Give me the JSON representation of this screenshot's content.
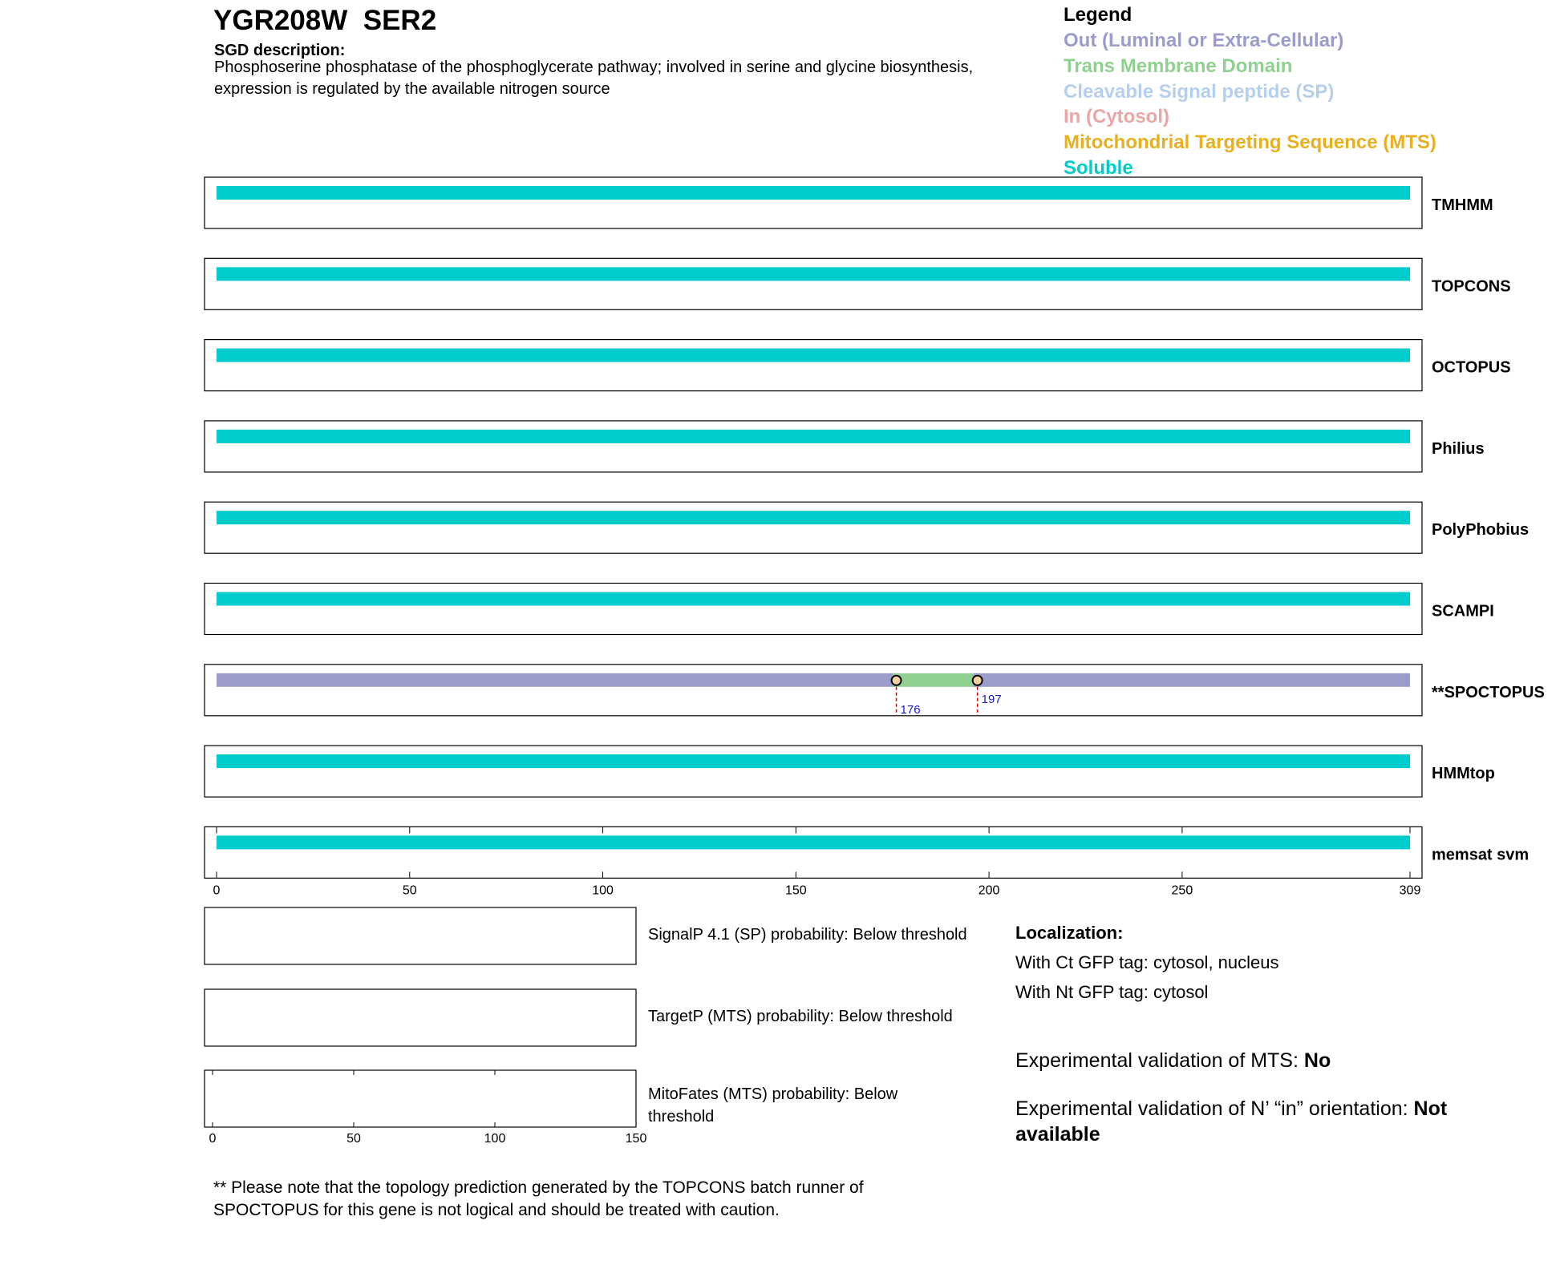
{
  "header": {
    "title": "YGR208W  SER2",
    "description_label": "SGD description:",
    "description": "Phosphoserine phosphatase of the phosphoglycerate pathway; involved in serine and glycine biosynthesis, expression is regulated by the available nitrogen source"
  },
  "legend": {
    "title": "Legend",
    "items": [
      {
        "label": "Out (Luminal or Extra-Cellular)",
        "color": "#9c9ccc"
      },
      {
        "label": "Trans Membrane Domain",
        "color": "#90d090"
      },
      {
        "label": "Cleavable Signal peptide (SP)",
        "color": "#b5d0ee"
      },
      {
        "label": "In (Cytosol)",
        "color": "#eba5a5"
      },
      {
        "label": "Mitochondrial Targeting Sequence (MTS)",
        "color": "#e8b020"
      },
      {
        "label": "Soluble",
        "color": "#00cccc"
      }
    ]
  },
  "topology": {
    "xlim": [
      0,
      309
    ],
    "xticks": [
      0,
      50,
      100,
      150,
      200,
      250,
      309
    ],
    "tracks": [
      {
        "name": "TMHMM",
        "segments": [
          {
            "start": 1,
            "end": 309,
            "legend": 5
          }
        ]
      },
      {
        "name": "TOPCONS",
        "segments": [
          {
            "start": 1,
            "end": 309,
            "legend": 5
          }
        ]
      },
      {
        "name": "OCTOPUS",
        "segments": [
          {
            "start": 1,
            "end": 309,
            "legend": 5
          }
        ]
      },
      {
        "name": "Philius",
        "segments": [
          {
            "start": 1,
            "end": 309,
            "legend": 5
          }
        ]
      },
      {
        "name": "PolyPhobius",
        "segments": [
          {
            "start": 1,
            "end": 309,
            "legend": 5
          }
        ]
      },
      {
        "name": "SCAMPI",
        "segments": [
          {
            "start": 1,
            "end": 309,
            "legend": 5
          }
        ]
      },
      {
        "name": "**SPOCTOPUS",
        "segments": [
          {
            "start": 1,
            "end": 176,
            "legend": 0
          },
          {
            "start": 176,
            "end": 197,
            "legend": 1
          },
          {
            "start": 197,
            "end": 309,
            "legend": 0
          }
        ],
        "markers": [
          176,
          197
        ]
      },
      {
        "name": "HMMtop",
        "segments": [
          {
            "start": 1,
            "end": 309,
            "legend": 5
          }
        ]
      },
      {
        "name": "memsat svm",
        "segments": [
          {
            "start": 1,
            "end": 309,
            "legend": 5
          }
        ]
      }
    ]
  },
  "probabilities": {
    "xlim": [
      0,
      150
    ],
    "xticks": [
      0,
      50,
      100,
      150
    ],
    "tracks": [
      {
        "label": "SignalP 4.1 (SP) probability: Below threshold"
      },
      {
        "label": "TargetP (MTS) probability: Below threshold"
      },
      {
        "label": "MitoFates (MTS) probability: Below threshold"
      }
    ]
  },
  "localization": {
    "title": "Localization:",
    "lines": [
      "With Ct GFP tag: cytosol, nucleus",
      "With Nt GFP tag: cytosol"
    ]
  },
  "validation": [
    {
      "label": "Experimental validation of MTS: ",
      "value": "No"
    },
    {
      "label": "Experimental validation of N’ “in” orientation: ",
      "value": "Not available"
    }
  ],
  "note": "** Please note that the topology prediction generated by the TOPCONS batch runner of SPOCTOPUS for this gene is not logical and should be treated with caution."
}
